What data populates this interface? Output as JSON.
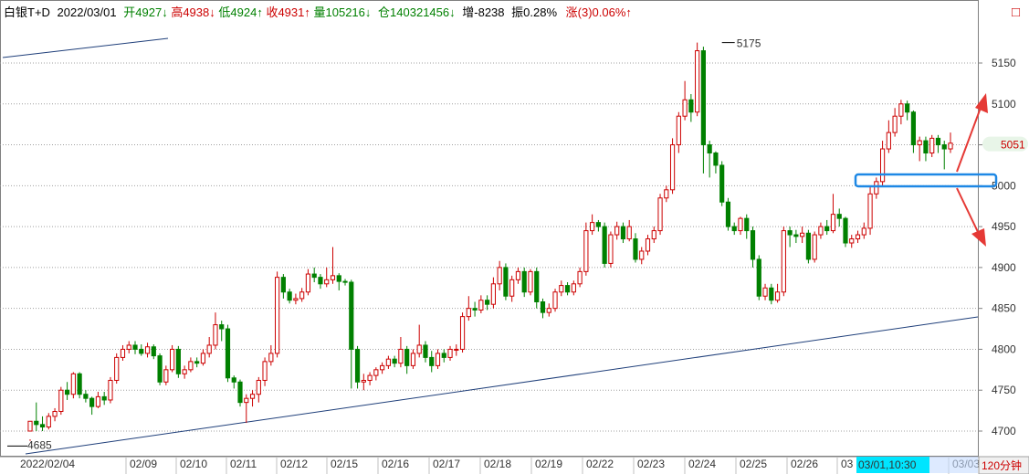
{
  "header": {
    "symbol": "白银T+D",
    "date": "2022/03/01",
    "open_label": "开",
    "open_value": "4927",
    "open_arrow": "↓",
    "high_label": "高",
    "high_value": "4938",
    "high_arrow": "↓",
    "low_label": "低",
    "low_value": "4924",
    "low_arrow": "↑",
    "close_label": "收",
    "close_value": "4931",
    "close_arrow": "↑",
    "volume_label": "量",
    "volume_value": "105216",
    "volume_arrow": "↓",
    "position_label": "仓",
    "position_value": "140321456",
    "position_arrow": "↓",
    "increase_label": "增",
    "increase_value": "-8238",
    "amplitude_label": "振",
    "amplitude_value": "0.28%",
    "change_label": "涨",
    "change_value": "(3)0.06%",
    "change_arrow": "↑",
    "close_box_glyph": "□",
    "colors": {
      "up": "#cc0000",
      "down": "#008000",
      "neutral": "#000000"
    }
  },
  "chart_data": {
    "type": "candlestick",
    "interval": "120分钟",
    "ylim": [
      4680,
      5215
    ],
    "y_ticks": [
      4700,
      4750,
      4800,
      4850,
      4900,
      4950,
      5000,
      5050,
      5100,
      5150
    ],
    "y_tick_labels": [
      "4700",
      "4750",
      "4800",
      "4850",
      "4900",
      "4950",
      "5000",
      "5050",
      "5100",
      "5150"
    ],
    "current_price_label": "5051",
    "current_price": 5051,
    "x_labels": [
      "2022/02/04",
      "02/09",
      "02/10",
      "02/11",
      "02/12",
      "02/15",
      "02/16",
      "02/17",
      "02/18",
      "02/19",
      "02/22",
      "02/23",
      "02/24",
      "02/25",
      "02/26",
      "03",
      "03/03"
    ],
    "crosshair_label": "03/01,10:30",
    "annotations": [
      {
        "label": "5175",
        "value": 5175
      },
      {
        "label": "4685",
        "value": 4685
      }
    ],
    "candles": [
      [
        4700,
        4712,
        4690,
        4688
      ],
      [
        4712,
        4708,
        4735,
        4700
      ],
      [
        4708,
        4705,
        4718,
        4700
      ],
      [
        4705,
        4718,
        4722,
        4702
      ],
      [
        4718,
        4724,
        4728,
        4712
      ],
      [
        4724,
        4750,
        4754,
        4720
      ],
      [
        4750,
        4745,
        4760,
        4738
      ],
      [
        4745,
        4770,
        4772,
        4740
      ],
      [
        4770,
        4745,
        4772,
        4740
      ],
      [
        4745,
        4740,
        4750,
        4735
      ],
      [
        4740,
        4730,
        4742,
        4720
      ],
      [
        4730,
        4742,
        4748,
        4728
      ],
      [
        4742,
        4738,
        4748,
        4732
      ],
      [
        4738,
        4762,
        4766,
        4734
      ],
      [
        4762,
        4790,
        4795,
        4758
      ],
      [
        4790,
        4800,
        4805,
        4786
      ],
      [
        4800,
        4805,
        4810,
        4795
      ],
      [
        4805,
        4800,
        4810,
        4794
      ],
      [
        4800,
        4795,
        4806,
        4792
      ],
      [
        4795,
        4803,
        4808,
        4790
      ],
      [
        4803,
        4792,
        4806,
        4788
      ],
      [
        4792,
        4760,
        4795,
        4756
      ],
      [
        4760,
        4775,
        4780,
        4756
      ],
      [
        4775,
        4800,
        4805,
        4772
      ],
      [
        4800,
        4770,
        4804,
        4765
      ],
      [
        4770,
        4775,
        4780,
        4764
      ],
      [
        4775,
        4785,
        4790,
        4772
      ],
      [
        4785,
        4783,
        4790,
        4778
      ],
      [
        4783,
        4795,
        4800,
        4780
      ],
      [
        4795,
        4805,
        4815,
        4790
      ],
      [
        4805,
        4830,
        4845,
        4800
      ],
      [
        4830,
        4825,
        4835,
        4810
      ],
      [
        4825,
        4765,
        4830,
        4760
      ],
      [
        4765,
        4760,
        4768,
        4752
      ],
      [
        4760,
        4735,
        4763,
        4730
      ],
      [
        4735,
        4740,
        4745,
        4710
      ],
      [
        4740,
        4745,
        4750,
        4730
      ],
      [
        4745,
        4762,
        4766,
        4735
      ],
      [
        4762,
        4785,
        4790,
        4755
      ],
      [
        4785,
        4795,
        4805,
        4780
      ],
      [
        4795,
        4888,
        4895,
        4790
      ],
      [
        4888,
        4870,
        4892,
        4862
      ],
      [
        4870,
        4860,
        4874,
        4856
      ],
      [
        4860,
        4862,
        4868,
        4855
      ],
      [
        4862,
        4870,
        4875,
        4858
      ],
      [
        4870,
        4892,
        4898,
        4866
      ],
      [
        4892,
        4888,
        4900,
        4882
      ],
      [
        4888,
        4880,
        4892,
        4874
      ],
      [
        4880,
        4885,
        4900,
        4876
      ],
      [
        4885,
        4890,
        4925,
        4880
      ],
      [
        4890,
        4883,
        4893,
        4872
      ],
      [
        4883,
        4882,
        4886,
        4878
      ],
      [
        4882,
        4800,
        4885,
        4752
      ],
      [
        4800,
        4760,
        4804,
        4752
      ],
      [
        4760,
        4762,
        4770,
        4750
      ],
      [
        4762,
        4768,
        4772,
        4756
      ],
      [
        4768,
        4775,
        4778,
        4762
      ],
      [
        4775,
        4780,
        4784,
        4770
      ],
      [
        4780,
        4788,
        4792,
        4776
      ],
      [
        4788,
        4783,
        4792,
        4778
      ],
      [
        4783,
        4800,
        4815,
        4778
      ],
      [
        4800,
        4780,
        4804,
        4770
      ],
      [
        4780,
        4795,
        4800,
        4776
      ],
      [
        4795,
        4805,
        4830,
        4790
      ],
      [
        4805,
        4790,
        4810,
        4784
      ],
      [
        4790,
        4780,
        4798,
        4772
      ],
      [
        4780,
        4795,
        4800,
        4776
      ],
      [
        4795,
        4790,
        4800,
        4784
      ],
      [
        4790,
        4800,
        4804,
        4786
      ],
      [
        4800,
        4800,
        4806,
        4792
      ],
      [
        4800,
        4840,
        4845,
        4796
      ],
      [
        4840,
        4850,
        4865,
        4835
      ],
      [
        4850,
        4848,
        4858,
        4840
      ],
      [
        4848,
        4860,
        4866,
        4844
      ],
      [
        4860,
        4855,
        4866,
        4848
      ],
      [
        4855,
        4880,
        4888,
        4850
      ],
      [
        4880,
        4900,
        4908,
        4872
      ],
      [
        4900,
        4865,
        4905,
        4860
      ],
      [
        4865,
        4885,
        4890,
        4858
      ],
      [
        4885,
        4895,
        4900,
        4880
      ],
      [
        4895,
        4870,
        4900,
        4864
      ],
      [
        4870,
        4895,
        4898,
        4866
      ],
      [
        4895,
        4858,
        4900,
        4850
      ],
      [
        4858,
        4845,
        4862,
        4838
      ],
      [
        4845,
        4850,
        4856,
        4840
      ],
      [
        4850,
        4870,
        4874,
        4846
      ],
      [
        4870,
        4878,
        4884,
        4865
      ],
      [
        4878,
        4870,
        4882,
        4866
      ],
      [
        4870,
        4880,
        4884,
        4866
      ],
      [
        4880,
        4895,
        4900,
        4876
      ],
      [
        4895,
        4945,
        4955,
        4890
      ],
      [
        4945,
        4955,
        4965,
        4940
      ],
      [
        4955,
        4950,
        4958,
        4944
      ],
      [
        4950,
        4905,
        4955,
        4900
      ],
      [
        4905,
        4940,
        4944,
        4900
      ],
      [
        4940,
        4950,
        4956,
        4934
      ],
      [
        4950,
        4935,
        4955,
        4930
      ],
      [
        4935,
        4950,
        4958,
        4932
      ],
      [
        4935,
        4910,
        4942,
        4906
      ],
      [
        4910,
        4920,
        4925,
        4904
      ],
      [
        4920,
        4935,
        4940,
        4915
      ],
      [
        4935,
        4945,
        4950,
        4930
      ],
      [
        4945,
        4985,
        4990,
        4940
      ],
      [
        4985,
        4995,
        5000,
        4980
      ],
      [
        4995,
        5050,
        5058,
        4990
      ],
      [
        5050,
        5085,
        5090,
        5040
      ],
      [
        5085,
        5105,
        5128,
        5080
      ],
      [
        5105,
        5090,
        5112,
        5078
      ],
      [
        5090,
        5165,
        5175,
        5085
      ],
      [
        5165,
        5050,
        5170,
        5015
      ],
      [
        5050,
        5040,
        5055,
        5010
      ],
      [
        5040,
        5025,
        5042,
        5015
      ],
      [
        5025,
        4980,
        5030,
        4975
      ],
      [
        4980,
        4950,
        4985,
        4945
      ],
      [
        4950,
        4945,
        4955,
        4940
      ],
      [
        4945,
        4960,
        4962,
        4940
      ],
      [
        4960,
        4945,
        4965,
        4935
      ],
      [
        4945,
        4910,
        4950,
        4900
      ],
      [
        4910,
        4865,
        4915,
        4860
      ],
      [
        4865,
        4875,
        4880,
        4860
      ],
      [
        4875,
        4860,
        4880,
        4855
      ],
      [
        4860,
        4870,
        4880,
        4857
      ],
      [
        4870,
        4945,
        4950,
        4865
      ],
      [
        4945,
        4940,
        4950,
        4925
      ],
      [
        4940,
        4938,
        4946,
        4930
      ],
      [
        4938,
        4942,
        4950,
        4930
      ],
      [
        4942,
        4910,
        4946,
        4905
      ],
      [
        4910,
        4940,
        4944,
        4906
      ],
      [
        4940,
        4950,
        4955,
        4935
      ],
      [
        4950,
        4945,
        4958,
        4940
      ],
      [
        4945,
        4965,
        4990,
        4942
      ],
      [
        4965,
        4960,
        4972,
        4950
      ],
      [
        4960,
        4930,
        4962,
        4925
      ],
      [
        4930,
        4935,
        4940,
        4924
      ],
      [
        4935,
        4940,
        4945,
        4930
      ],
      [
        4940,
        4948,
        4955,
        4935
      ],
      [
        4948,
        4990,
        5000,
        4940
      ],
      [
        4990,
        5005,
        5010,
        4984
      ],
      [
        5005,
        5045,
        5055,
        5000
      ],
      [
        5045,
        5065,
        5080,
        5040
      ],
      [
        5065,
        5085,
        5095,
        5060
      ],
      [
        5085,
        5100,
        5105,
        5075
      ],
      [
        5100,
        5090,
        5104,
        5080
      ],
      [
        5090,
        5050,
        5092,
        5040
      ],
      [
        5050,
        5055,
        5060,
        5030
      ],
      [
        5055,
        5040,
        5060,
        5030
      ],
      [
        5040,
        5058,
        5062,
        5035
      ],
      [
        5058,
        5050,
        5062,
        5040
      ],
      [
        5050,
        5045,
        5055,
        5020
      ],
      [
        5045,
        5052,
        5065,
        5040
      ]
    ]
  }
}
